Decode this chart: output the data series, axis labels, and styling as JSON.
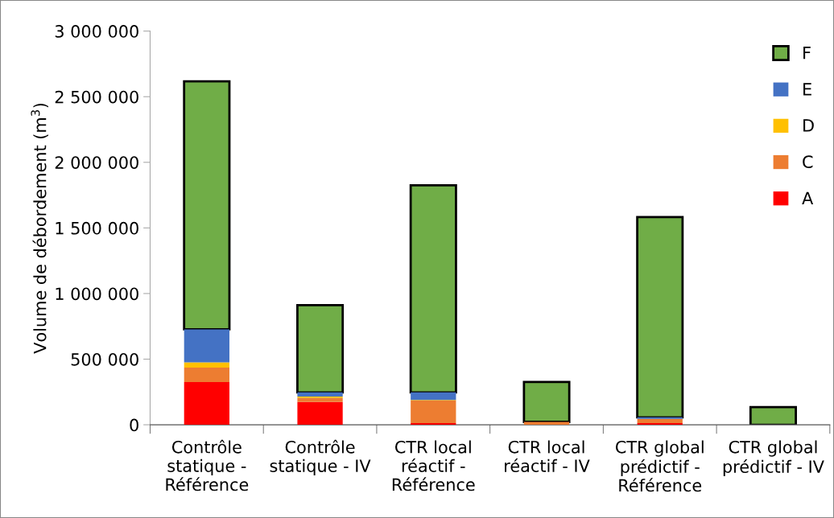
{
  "chart_data": {
    "type": "bar",
    "stacked": true,
    "ylabel": "Volume de débordement (m$^{3}$)",
    "categories": [
      "Contrôle\nstatique -\nRéférence",
      "Contrôle\nstatique - IV",
      "CTR local\nréactif -\nRéférence",
      "CTR local\nréactif - IV",
      "CTR global\nprédictif -\nRéférence",
      "CTR global\nprédictif - IV"
    ],
    "series": [
      {
        "name": "A",
        "color": "#ff0000",
        "values": [
          325000,
          173000,
          12000,
          0,
          12000,
          0
        ]
      },
      {
        "name": "C",
        "color": "#ed7d31",
        "values": [
          110000,
          33000,
          173000,
          22000,
          33000,
          0
        ]
      },
      {
        "name": "D",
        "color": "#ffc000",
        "values": [
          40000,
          9000,
          4000,
          0,
          0,
          0
        ]
      },
      {
        "name": "E",
        "color": "#4472c4",
        "values": [
          252000,
          32000,
          58000,
          0,
          12000,
          0
        ]
      },
      {
        "name": "F",
        "color": "#70ad47",
        "values": [
          1890000,
          665000,
          1578000,
          304000,
          1526000,
          135000
        ]
      }
    ],
    "ylim": [
      0,
      3000000
    ],
    "yticks": [
      {
        "value": 0,
        "label": "0"
      },
      {
        "value": 500000,
        "label": "500 000"
      },
      {
        "value": 1000000,
        "label": "1 000 000"
      },
      {
        "value": 1500000,
        "label": "1 500 000"
      },
      {
        "value": 2000000,
        "label": "2 000 000"
      },
      {
        "value": 2500000,
        "label": "2 500 000"
      },
      {
        "value": 3000000,
        "label": "3 000 000"
      }
    ],
    "grid": false,
    "legend": "top right"
  }
}
